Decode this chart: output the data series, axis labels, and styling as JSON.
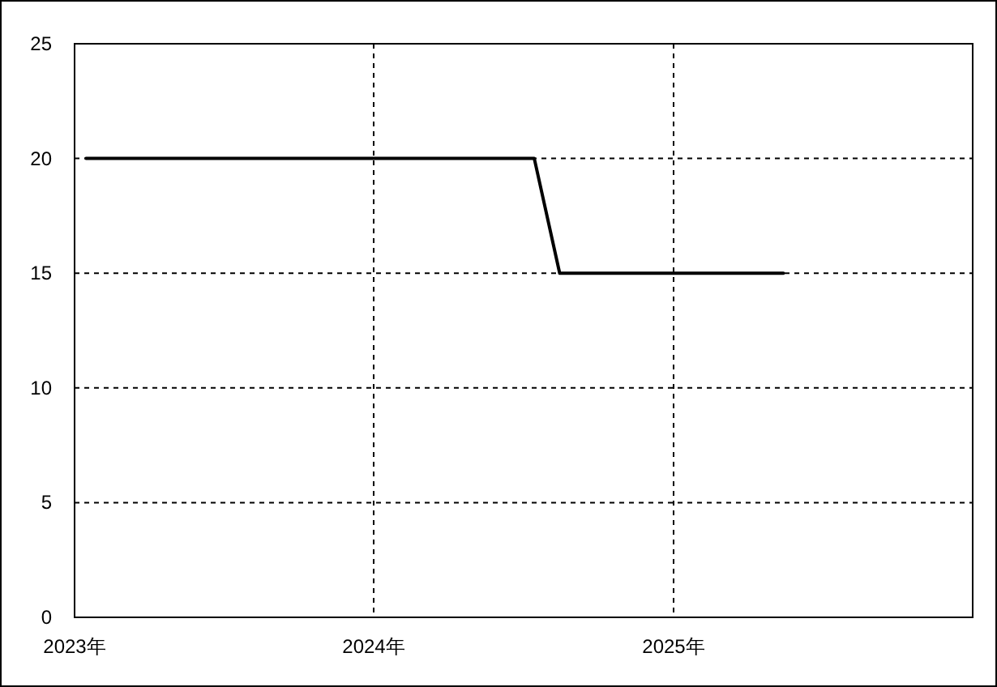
{
  "chart_data": {
    "type": "line",
    "x": [
      "2023-01-15",
      "2024-07-15",
      "2024-08-15",
      "2025-05-15"
    ],
    "series": [
      {
        "color": "#000000",
        "values": [
          20,
          20,
          15,
          15
        ]
      }
    ],
    "xlim": [
      "2023-01-01",
      "2026-01-01"
    ],
    "xticks": [
      {
        "value": "2023-01-01",
        "label": "2023年"
      },
      {
        "value": "2024-01-01",
        "label": "2024年"
      },
      {
        "value": "2025-01-01",
        "label": "2025年"
      }
    ],
    "ylim": [
      0,
      25
    ],
    "yticks": [
      0,
      5,
      10,
      15,
      20,
      25
    ],
    "grid": true,
    "marker": "none",
    "line_style": "solid"
  }
}
